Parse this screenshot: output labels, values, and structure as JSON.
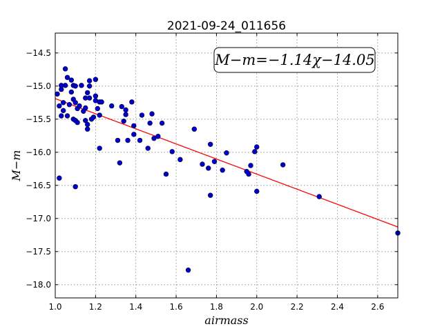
{
  "chart_data": {
    "type": "scatter",
    "title": "2021-09-24_011656",
    "xlabel": "airmass",
    "ylabel": "M−m",
    "xlim": [
      1.0,
      2.7
    ],
    "ylim": [
      -18.2,
      -14.2
    ],
    "y_inverted": true,
    "xticks": [
      "1.0",
      "1.2",
      "1.4",
      "1.6",
      "1.8",
      "2.0",
      "2.2",
      "2.4",
      "2.6"
    ],
    "yticks": [
      "−14.5",
      "−15.0",
      "−15.5",
      "−16.0",
      "−16.5",
      "−17.0",
      "−17.5",
      "−18.0"
    ],
    "grid": true,
    "annotation": "M−m=−1.14χ−14.05",
    "fit": {
      "slope": -1.14,
      "intercept": -14.05,
      "color": "#ff0000"
    },
    "points_color": "#0000cc",
    "points": [
      [
        1.01,
        -15.12
      ],
      [
        1.02,
        -15.3
      ],
      [
        1.03,
        -15.05
      ],
      [
        1.03,
        -14.99
      ],
      [
        1.04,
        -15.25
      ],
      [
        1.04,
        -15.37
      ],
      [
        1.05,
        -14.74
      ],
      [
        1.05,
        -14.99
      ],
      [
        1.06,
        -14.87
      ],
      [
        1.06,
        -15.45
      ],
      [
        1.03,
        -15.45
      ],
      [
        1.07,
        -15.28
      ],
      [
        1.08,
        -14.91
      ],
      [
        1.08,
        -15.09
      ],
      [
        1.09,
        -14.99
      ],
      [
        1.09,
        -15.2
      ],
      [
        1.1,
        -15.0
      ],
      [
        1.1,
        -15.25
      ],
      [
        1.09,
        -15.5
      ],
      [
        1.1,
        -15.52
      ],
      [
        1.11,
        -15.55
      ],
      [
        1.11,
        -15.34
      ],
      [
        1.12,
        -15.3
      ],
      [
        1.13,
        -14.99
      ],
      [
        1.14,
        -15.38
      ],
      [
        1.15,
        -15.33
      ],
      [
        1.15,
        -15.18
      ],
      [
        1.15,
        -15.52
      ],
      [
        1.16,
        -15.58
      ],
      [
        1.16,
        -15.65
      ],
      [
        1.16,
        -15.1
      ],
      [
        1.17,
        -14.92
      ],
      [
        1.17,
        -15.0
      ],
      [
        1.17,
        -15.18
      ],
      [
        1.18,
        -15.5
      ],
      [
        1.19,
        -15.47
      ],
      [
        1.2,
        -14.9
      ],
      [
        1.2,
        -15.15
      ],
      [
        1.2,
        -15.22
      ],
      [
        1.21,
        -15.34
      ],
      [
        1.22,
        -15.44
      ],
      [
        1.22,
        -15.24
      ],
      [
        1.23,
        -15.24
      ],
      [
        1.22,
        -15.94
      ],
      [
        1.28,
        -15.3
      ],
      [
        1.31,
        -15.82
      ],
      [
        1.32,
        -16.16
      ],
      [
        1.33,
        -15.31
      ],
      [
        1.34,
        -15.53
      ],
      [
        1.35,
        -15.43
      ],
      [
        1.35,
        -15.36
      ],
      [
        1.36,
        -15.82
      ],
      [
        1.38,
        -15.24
      ],
      [
        1.39,
        -15.73
      ],
      [
        1.39,
        -15.6
      ],
      [
        1.42,
        -15.82
      ],
      [
        1.43,
        -15.44
      ],
      [
        1.46,
        -15.94
      ],
      [
        1.47,
        -15.56
      ],
      [
        1.48,
        -15.42
      ],
      [
        1.49,
        -15.79
      ],
      [
        1.51,
        -15.76
      ],
      [
        1.53,
        -15.56
      ],
      [
        1.55,
        -16.33
      ],
      [
        1.58,
        -15.99
      ],
      [
        1.62,
        -16.11
      ],
      [
        1.66,
        -17.78
      ],
      [
        1.69,
        -15.65
      ],
      [
        1.73,
        -16.18
      ],
      [
        1.76,
        -16.24
      ],
      [
        1.77,
        -15.88
      ],
      [
        1.77,
        -16.65
      ],
      [
        1.79,
        -16.14
      ],
      [
        1.83,
        -16.27
      ],
      [
        1.85,
        -16.01
      ],
      [
        1.95,
        -16.29
      ],
      [
        1.96,
        -16.33
      ],
      [
        1.97,
        -16.2
      ],
      [
        1.99,
        -15.99
      ],
      [
        2.0,
        -15.92
      ],
      [
        2.0,
        -16.59
      ],
      [
        2.13,
        -16.19
      ],
      [
        2.31,
        -16.67
      ],
      [
        2.7,
        -17.22
      ],
      [
        1.02,
        -16.39
      ],
      [
        1.1,
        -16.52
      ]
    ]
  }
}
